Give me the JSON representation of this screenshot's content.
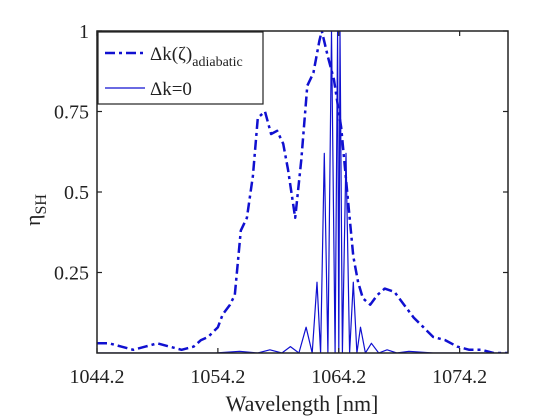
{
  "chart_data": {
    "type": "line",
    "title": "",
    "xlabel": "Wavelength [nm]",
    "ylabel": {
      "main": "η",
      "subscript": "SH"
    },
    "xlim": [
      1044.2,
      1078.2
    ],
    "ylim": [
      0,
      1
    ],
    "xticks": [
      1044.2,
      1054.2,
      1064.2,
      1074.2
    ],
    "xtick_labels": [
      "1044.2",
      "1054.2",
      "1064.2",
      "1074.2"
    ],
    "yticks": [
      0.25,
      0.5,
      0.75,
      1
    ],
    "ytick_labels": [
      "0.25",
      "0.5",
      "0.75",
      "1"
    ],
    "grid": false,
    "legend_position": "top-left",
    "colors": {
      "series": "#1010d0",
      "axes": "#222222"
    },
    "series": [
      {
        "name": "Δk(ζ)adiabatic",
        "legend": {
          "main": "Δk(ζ)",
          "subscript": "adiabatic"
        },
        "style": "dashdot",
        "x": [
          1044.2,
          1045.2,
          1046.2,
          1047.2,
          1048.2,
          1049.2,
          1050.2,
          1051.2,
          1052.2,
          1052.8,
          1053.4,
          1054.2,
          1054.6,
          1055.2,
          1055.6,
          1056.1,
          1056.6,
          1057.1,
          1057.5,
          1058.1,
          1058.6,
          1059.1,
          1059.6,
          1060.0,
          1060.6,
          1061.1,
          1061.6,
          1062.1,
          1062.6,
          1062.8,
          1063.3,
          1063.8,
          1064.4,
          1064.9,
          1065.4,
          1065.8,
          1066.2,
          1066.8,
          1067.4,
          1068.0,
          1068.8,
          1069.6,
          1070.4,
          1071.2,
          1072.0,
          1073.0,
          1074.0,
          1075.0,
          1076.0,
          1077.0,
          1078.2
        ],
        "y": [
          0.03,
          0.03,
          0.02,
          0.01,
          0.02,
          0.03,
          0.02,
          0.01,
          0.02,
          0.04,
          0.05,
          0.08,
          0.12,
          0.15,
          0.18,
          0.38,
          0.42,
          0.55,
          0.73,
          0.75,
          0.68,
          0.69,
          0.65,
          0.57,
          0.42,
          0.6,
          0.83,
          0.87,
          0.97,
          1.0,
          0.92,
          0.85,
          0.7,
          0.5,
          0.3,
          0.22,
          0.17,
          0.15,
          0.18,
          0.2,
          0.19,
          0.15,
          0.11,
          0.08,
          0.05,
          0.04,
          0.02,
          0.01,
          0.01,
          0.0,
          0.0
        ]
      },
      {
        "name": "Δk=0",
        "legend": {
          "main": "Δk=0",
          "subscript": ""
        },
        "style": "solid",
        "x": [
          1044.2,
          1054.0,
          1056.0,
          1057.5,
          1058.5,
          1059.5,
          1060.2,
          1060.9,
          1061.5,
          1062.0,
          1062.4,
          1062.7,
          1063.0,
          1063.3,
          1063.6,
          1063.9,
          1064.1,
          1064.2,
          1064.3,
          1064.5,
          1064.8,
          1065.1,
          1065.4,
          1065.7,
          1066.0,
          1066.4,
          1066.9,
          1067.5,
          1068.2,
          1069.0,
          1070.0,
          1072.0,
          1078.2
        ],
        "y": [
          0.0,
          0.0,
          0.005,
          0.0,
          0.01,
          0.0,
          0.02,
          0.0,
          0.08,
          0.0,
          0.22,
          0.0,
          0.62,
          0.0,
          1.0,
          0.0,
          1.0,
          0.0,
          1.0,
          0.0,
          0.62,
          0.0,
          0.22,
          0.0,
          0.08,
          0.0,
          0.03,
          0.0,
          0.01,
          0.0,
          0.005,
          0.0,
          0.0
        ]
      }
    ]
  }
}
